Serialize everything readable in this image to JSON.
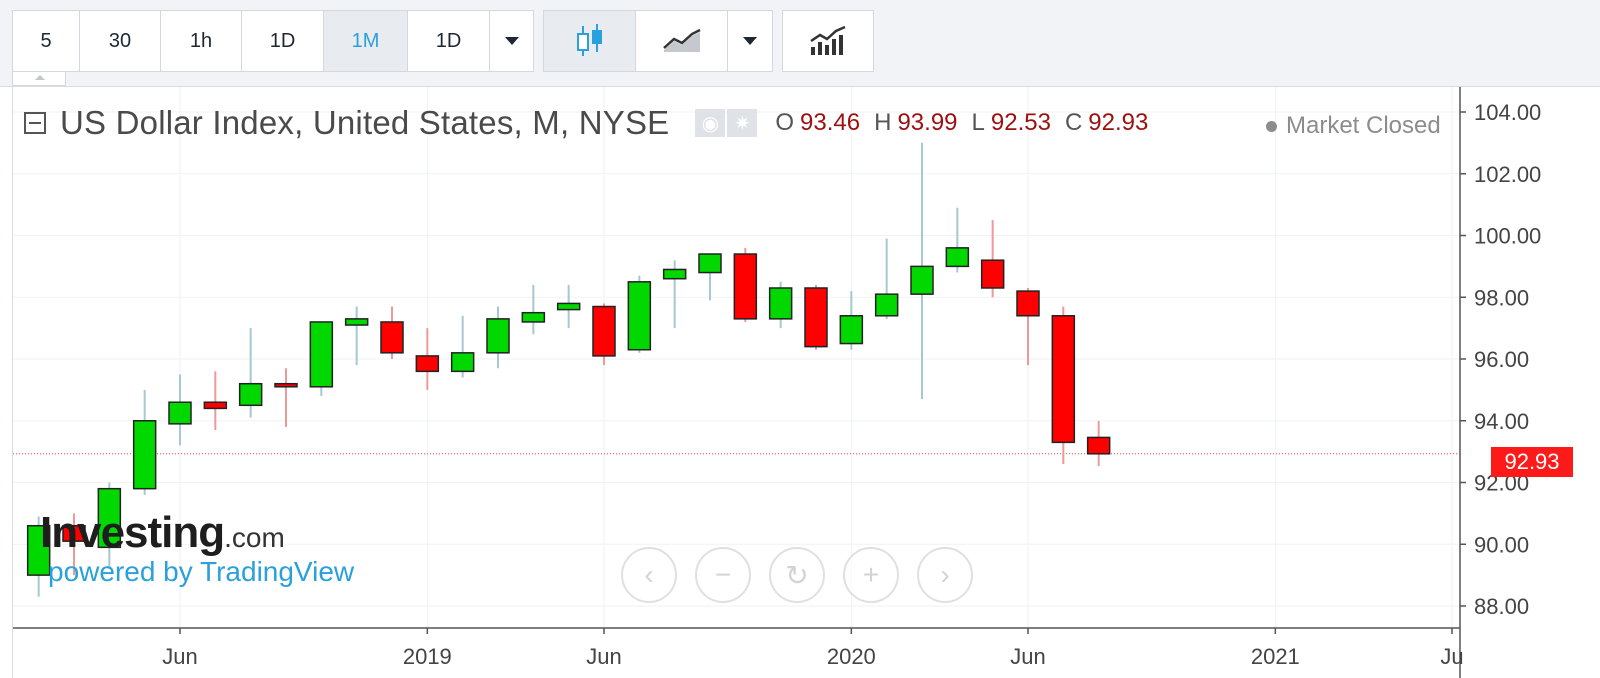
{
  "toolbar": {
    "intervals": [
      "5",
      "30",
      "1h",
      "1D",
      "1M",
      "1D"
    ],
    "active_interval_index": 4,
    "chart_type_buttons": [
      "candlestick-icon",
      "area-chart-icon",
      "indicators-icon"
    ]
  },
  "legend": {
    "title": "US Dollar Index, United States, M, NYSE",
    "icons": [
      "eye-icon",
      "gear-icon"
    ],
    "ohlc": [
      {
        "key": "O",
        "value": "93.46"
      },
      {
        "key": "H",
        "value": "93.99"
      },
      {
        "key": "L",
        "value": "92.53"
      },
      {
        "key": "C",
        "value": "92.93"
      }
    ]
  },
  "status": {
    "market": "Market Closed"
  },
  "branding": {
    "logo_main": "Investing",
    "logo_suffix": ".com",
    "powered": "powered by TradingView"
  },
  "nav": [
    "chevron-left-icon",
    "zoom-out-icon",
    "reset-icon",
    "zoom-in-icon",
    "chevron-right-icon"
  ],
  "price_tag": "92.93",
  "colors": {
    "up": "#00d800",
    "down": "#ff0000",
    "up_wick": "#a6c8d2",
    "down_wick": "#ee9999",
    "accent": "#2aa0dc",
    "price_line": "#ff3b3b"
  },
  "chart_data": {
    "type": "candlestick",
    "title": "US Dollar Index, United States, M, NYSE",
    "ylim": [
      87,
      104.8
    ],
    "y_ticks": [
      "88.00",
      "90.00",
      "92.00",
      "94.00",
      "96.00",
      "98.00",
      "100.00",
      "102.00",
      "104.00"
    ],
    "x_ticks": [
      "Jun",
      "2019",
      "Jun",
      "2020",
      "Jun",
      "2021",
      "Ju"
    ],
    "x_tick_months": [
      "2018-06",
      "2019-01",
      "2019-06",
      "2020-01",
      "2020-06",
      "2021-01",
      "2021-06"
    ],
    "grid": true,
    "last_price": 92.93,
    "candles": [
      {
        "t": "2018-02",
        "o": 89.0,
        "h": 90.9,
        "l": 88.3,
        "c": 90.6
      },
      {
        "t": "2018-03",
        "o": 90.6,
        "h": 91.0,
        "l": 89.0,
        "c": 90.1
      },
      {
        "t": "2018-04",
        "o": 89.9,
        "h": 92.0,
        "l": 89.2,
        "c": 91.8
      },
      {
        "t": "2018-05",
        "o": 91.8,
        "h": 95.0,
        "l": 91.6,
        "c": 94.0
      },
      {
        "t": "2018-06",
        "o": 93.9,
        "h": 95.5,
        "l": 93.2,
        "c": 94.6
      },
      {
        "t": "2018-07",
        "o": 94.6,
        "h": 95.6,
        "l": 93.7,
        "c": 94.4
      },
      {
        "t": "2018-08",
        "o": 94.5,
        "h": 97.0,
        "l": 94.1,
        "c": 95.2
      },
      {
        "t": "2018-09",
        "o": 95.2,
        "h": 95.7,
        "l": 93.8,
        "c": 95.1
      },
      {
        "t": "2018-10",
        "o": 95.1,
        "h": 97.2,
        "l": 94.8,
        "c": 97.2
      },
      {
        "t": "2018-11",
        "o": 97.1,
        "h": 97.7,
        "l": 95.8,
        "c": 97.3
      },
      {
        "t": "2018-12",
        "o": 97.2,
        "h": 97.7,
        "l": 96.0,
        "c": 96.2
      },
      {
        "t": "2019-01",
        "o": 96.1,
        "h": 97.0,
        "l": 95.0,
        "c": 95.6
      },
      {
        "t": "2019-02",
        "o": 95.6,
        "h": 97.4,
        "l": 95.4,
        "c": 96.2
      },
      {
        "t": "2019-03",
        "o": 96.2,
        "h": 97.7,
        "l": 95.7,
        "c": 97.3
      },
      {
        "t": "2019-04",
        "o": 97.2,
        "h": 98.4,
        "l": 96.8,
        "c": 97.5
      },
      {
        "t": "2019-05",
        "o": 97.6,
        "h": 98.4,
        "l": 97.0,
        "c": 97.8
      },
      {
        "t": "2019-06",
        "o": 97.7,
        "h": 97.8,
        "l": 95.8,
        "c": 96.1
      },
      {
        "t": "2019-07",
        "o": 96.3,
        "h": 98.7,
        "l": 96.2,
        "c": 98.5
      },
      {
        "t": "2019-08",
        "o": 98.6,
        "h": 99.2,
        "l": 97.0,
        "c": 98.9
      },
      {
        "t": "2019-09",
        "o": 98.8,
        "h": 99.4,
        "l": 97.9,
        "c": 99.4
      },
      {
        "t": "2019-10",
        "o": 99.4,
        "h": 99.6,
        "l": 97.2,
        "c": 97.3
      },
      {
        "t": "2019-11",
        "o": 97.3,
        "h": 98.5,
        "l": 97.0,
        "c": 98.3
      },
      {
        "t": "2019-12",
        "o": 98.3,
        "h": 98.4,
        "l": 96.3,
        "c": 96.4
      },
      {
        "t": "2020-01",
        "o": 96.5,
        "h": 98.2,
        "l": 96.3,
        "c": 97.4
      },
      {
        "t": "2020-02",
        "o": 97.4,
        "h": 99.9,
        "l": 97.3,
        "c": 98.1
      },
      {
        "t": "2020-03",
        "o": 98.1,
        "h": 103.0,
        "l": 94.7,
        "c": 99.0
      },
      {
        "t": "2020-04",
        "o": 99.0,
        "h": 100.9,
        "l": 98.8,
        "c": 99.6
      },
      {
        "t": "2020-05",
        "o": 99.2,
        "h": 100.5,
        "l": 98.0,
        "c": 98.3
      },
      {
        "t": "2020-06",
        "o": 98.2,
        "h": 98.3,
        "l": 95.8,
        "c": 97.4
      },
      {
        "t": "2020-07",
        "o": 97.4,
        "h": 97.7,
        "l": 92.6,
        "c": 93.3
      },
      {
        "t": "2020-08",
        "o": 93.46,
        "h": 93.99,
        "l": 92.53,
        "c": 92.93
      }
    ]
  }
}
